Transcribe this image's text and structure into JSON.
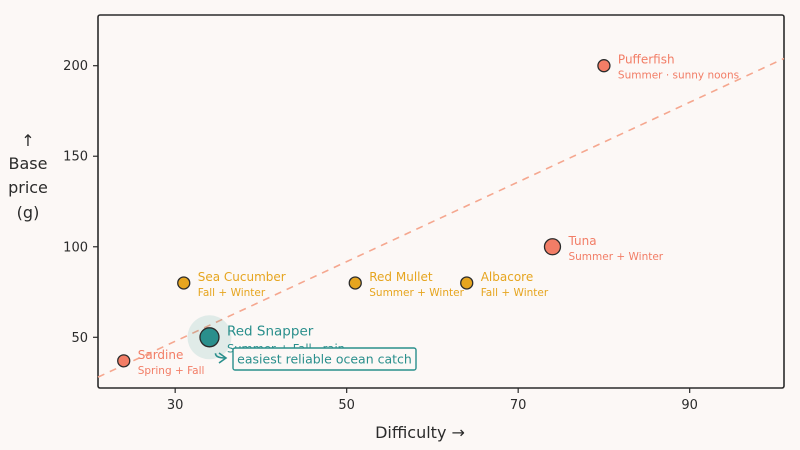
{
  "colors": {
    "background": "#fcf8f6",
    "coral": "#f27d66",
    "gold": "#e6a51f",
    "teal": "#2a8f8c",
    "ink": "#2b2b2b",
    "trendline": "#f5a78f"
  },
  "chart_data": {
    "type": "scatter",
    "title": "",
    "xlabel": "Difficulty →",
    "ylabel_lines": [
      "↑",
      "Base",
      "price",
      "(g)"
    ],
    "xlim": [
      21,
      101
    ],
    "ylim": [
      22,
      228
    ],
    "xticks": [
      30,
      50,
      70,
      90
    ],
    "yticks": [
      50,
      100,
      150,
      200
    ],
    "grid": false,
    "legend": "none",
    "trendline": {
      "style": "dashed",
      "x": [
        21,
        101
      ],
      "y": [
        28,
        204
      ]
    },
    "points": [
      {
        "name": "Sardine",
        "x": 24,
        "y": 37,
        "sub": "Spring + Fall",
        "color": "coral",
        "size": "small",
        "label_side": "right"
      },
      {
        "name": "Sea Cucumber",
        "x": 31,
        "y": 80,
        "sub": "Fall + Winter",
        "color": "gold",
        "size": "small",
        "label_side": "right"
      },
      {
        "name": "Red Snapper",
        "x": 34,
        "y": 50,
        "sub": "Summer + Fall · rain",
        "color": "teal",
        "size": "highlight",
        "label_side": "right"
      },
      {
        "name": "Red Mullet",
        "x": 51,
        "y": 80,
        "sub": "Summer + Winter",
        "color": "gold",
        "size": "small",
        "label_side": "right"
      },
      {
        "name": "Albacore",
        "x": 64,
        "y": 80,
        "sub": "Fall + Winter",
        "color": "gold",
        "size": "small",
        "label_side": "right"
      },
      {
        "name": "Tuna",
        "x": 74,
        "y": 100,
        "sub": "Summer + Winter",
        "color": "coral",
        "size": "medium",
        "label_side": "right"
      },
      {
        "name": "Pufferfish",
        "x": 80,
        "y": 200,
        "sub": "Summer · sunny noons",
        "color": "coral",
        "size": "small",
        "label_side": "right"
      }
    ],
    "annotation": {
      "text": "easiest reliable ocean catch",
      "target": "Red Snapper"
    }
  }
}
